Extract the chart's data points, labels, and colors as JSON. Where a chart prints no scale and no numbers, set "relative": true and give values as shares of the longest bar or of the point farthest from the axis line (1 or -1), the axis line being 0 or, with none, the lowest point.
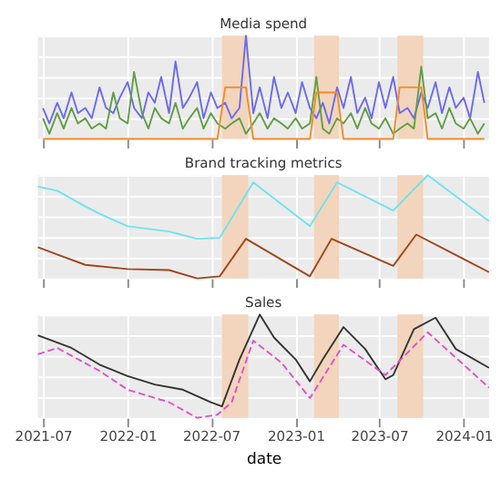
{
  "chart_data": [
    {
      "type": "line",
      "title": "Media spend",
      "relative": true,
      "grid": true,
      "tick_labels": false,
      "xlim": [
        "2021-06-20",
        "2024-02-25"
      ],
      "xticks": [
        "2021-07",
        "2022-01",
        "2022-07",
        "2023-01",
        "2023-07",
        "2024-01"
      ],
      "x": [
        "2021-07-01",
        "2021-07-15",
        "2021-08-01",
        "2021-08-15",
        "2021-09-01",
        "2021-09-15",
        "2021-10-01",
        "2021-10-15",
        "2021-11-01",
        "2021-11-15",
        "2021-12-01",
        "2021-12-15",
        "2022-01-01",
        "2022-01-15",
        "2022-02-01",
        "2022-02-15",
        "2022-03-01",
        "2022-03-15",
        "2022-04-01",
        "2022-04-15",
        "2022-05-01",
        "2022-05-15",
        "2022-06-01",
        "2022-06-15",
        "2022-07-01",
        "2022-07-15",
        "2022-08-01",
        "2022-08-15",
        "2022-09-01",
        "2022-09-15",
        "2022-10-01",
        "2022-10-15",
        "2022-11-01",
        "2022-11-15",
        "2022-12-01",
        "2022-12-15",
        "2023-01-01",
        "2023-01-15",
        "2023-02-01",
        "2023-02-15",
        "2023-03-01",
        "2023-03-15",
        "2023-04-01",
        "2023-04-15",
        "2023-05-01",
        "2023-05-15",
        "2023-06-01",
        "2023-06-15",
        "2023-07-01",
        "2023-07-15",
        "2023-08-01",
        "2023-08-15",
        "2023-09-01",
        "2023-09-15",
        "2023-10-01",
        "2023-10-15",
        "2023-11-01",
        "2023-11-15",
        "2023-12-01",
        "2023-12-15",
        "2024-01-01",
        "2024-01-15",
        "2024-02-01",
        "2024-02-15"
      ],
      "series": [
        {
          "color": "#6a6af0",
          "values": [
            0.3,
            0.15,
            0.35,
            0.2,
            0.45,
            0.25,
            0.3,
            0.2,
            0.5,
            0.3,
            0.25,
            0.4,
            0.55,
            0.3,
            0.2,
            0.45,
            0.35,
            0.6,
            0.25,
            0.75,
            0.3,
            0.4,
            0.55,
            0.2,
            0.45,
            0.3,
            0.35,
            0.2,
            0.3,
            1.0,
            0.25,
            0.5,
            0.2,
            0.6,
            0.3,
            0.45,
            0.25,
            0.55,
            0.3,
            0.2,
            0.35,
            0.15,
            0.5,
            0.3,
            0.6,
            0.25,
            0.4,
            0.2,
            0.55,
            0.3,
            0.6,
            0.25,
            0.3,
            0.2,
            0.45,
            0.3,
            0.55,
            0.25,
            0.5,
            0.3,
            0.4,
            0.2,
            0.65,
            0.35
          ]
        },
        {
          "color": "#5f9e45",
          "values": [
            0.2,
            0.05,
            0.25,
            0.1,
            0.3,
            0.15,
            0.2,
            0.1,
            0.15,
            0.1,
            0.45,
            0.2,
            0.15,
            0.65,
            0.25,
            0.1,
            0.3,
            0.2,
            0.15,
            0.35,
            0.1,
            0.2,
            0.3,
            0.1,
            0.25,
            0.15,
            0.1,
            0.15,
            0.2,
            0.05,
            0.15,
            0.25,
            0.1,
            0.2,
            0.15,
            0.1,
            0.2,
            0.1,
            0.15,
            0.6,
            0.1,
            0.05,
            0.2,
            0.15,
            0.25,
            0.1,
            0.3,
            0.15,
            0.1,
            0.2,
            0.05,
            0.1,
            0.15,
            0.1,
            0.7,
            0.2,
            0.25,
            0.1,
            0.3,
            0.15,
            0.1,
            0.2,
            0.05,
            0.15
          ]
        },
        {
          "color": "#f58a24",
          "values": [
            0,
            0,
            0,
            0,
            0,
            0,
            0,
            0,
            0,
            0,
            0,
            0,
            0,
            0,
            0,
            0,
            0,
            0,
            0,
            0,
            0,
            0,
            0,
            0,
            0,
            0,
            0.5,
            0.5,
            0.5,
            0.5,
            0,
            0,
            0,
            0,
            0,
            0,
            0,
            0,
            0,
            0.45,
            0.45,
            0.45,
            0.45,
            0,
            0,
            0,
            0,
            0,
            0,
            0,
            0,
            0.5,
            0.5,
            0.5,
            0.5,
            0,
            0,
            0,
            0,
            0,
            0,
            0,
            0,
            0
          ]
        }
      ],
      "bands": [
        {
          "axis": "x",
          "from": "2022-07-25",
          "to": "2022-09-20",
          "color": "#f2d5bc"
        },
        {
          "axis": "x",
          "from": "2023-02-10",
          "to": "2023-04-05",
          "color": "#f2d5bc"
        },
        {
          "axis": "x",
          "from": "2023-08-10",
          "to": "2023-10-05",
          "color": "#f2d5bc"
        }
      ]
    },
    {
      "type": "line",
      "title": "Brand tracking metrics",
      "relative": true,
      "grid": true,
      "tick_labels": false,
      "xlim": [
        "2021-06-20",
        "2024-02-25"
      ],
      "xticks": [
        "2021-07",
        "2022-01",
        "2022-07",
        "2023-01",
        "2023-07",
        "2024-01"
      ],
      "x": [
        "2021-06-20",
        "2021-08-01",
        "2021-10-01",
        "2021-11-01",
        "2022-01-01",
        "2022-04-01",
        "2022-06-01",
        "2022-07-20",
        "2022-10-01",
        "2023-02-01",
        "2023-04-01",
        "2023-08-01",
        "2023-10-15",
        "2024-02-25"
      ],
      "series": [
        {
          "color": "#a0451c",
          "x": [
            "2021-06-20",
            "2021-08-01",
            "2021-10-01",
            "2022-01-01",
            "2022-04-01",
            "2022-06-01",
            "2022-07-20",
            "2022-09-15",
            "2023-02-01",
            "2023-03-20",
            "2023-08-01",
            "2023-09-20",
            "2024-02-25"
          ],
          "values": [
            0.31,
            0.24,
            0.14,
            0.1,
            0.09,
            0.01,
            0.03,
            0.39,
            0.03,
            0.39,
            0.13,
            0.43,
            0.07
          ]
        },
        {
          "color": "#6fe3ef",
          "values": [
            0.89,
            0.85,
            0.7,
            0.63,
            0.51,
            0.46,
            0.39,
            0.4,
            0.93,
            0.51,
            0.93,
            0.66,
            1.0,
            0.56
          ]
        }
      ],
      "bands": [
        {
          "axis": "x",
          "from": "2022-07-25",
          "to": "2022-09-20",
          "color": "#f2d5bc"
        },
        {
          "axis": "x",
          "from": "2023-02-10",
          "to": "2023-04-05",
          "color": "#f2d5bc"
        },
        {
          "axis": "x",
          "from": "2023-08-10",
          "to": "2023-10-05",
          "color": "#f2d5bc"
        }
      ]
    },
    {
      "type": "line",
      "title": "Sales",
      "xlabel": "date",
      "relative": true,
      "grid": true,
      "tick_labels": "x",
      "xlim": [
        "2021-06-20",
        "2024-02-25"
      ],
      "xticks": [
        "2021-07",
        "2022-01",
        "2022-07",
        "2023-01",
        "2023-07",
        "2024-01"
      ],
      "series": [
        {
          "color": "#333333",
          "line_style": "solid",
          "x": [
            "2021-06-20",
            "2021-09-01",
            "2021-11-01",
            "2022-01-01",
            "2022-03-01",
            "2022-05-01",
            "2022-07-01",
            "2022-07-25",
            "2022-09-01",
            "2022-10-15",
            "2022-11-15",
            "2023-01-01",
            "2023-02-01",
            "2023-03-01",
            "2023-04-15",
            "2023-06-01",
            "2023-07-15",
            "2023-08-01",
            "2023-09-15",
            "2023-11-01",
            "2023-12-15",
            "2024-02-25"
          ],
          "values": [
            0.8,
            0.68,
            0.52,
            0.41,
            0.33,
            0.28,
            0.16,
            0.12,
            0.57,
            1.0,
            0.78,
            0.57,
            0.36,
            0.57,
            0.88,
            0.67,
            0.38,
            0.42,
            0.86,
            0.97,
            0.67,
            0.49
          ]
        },
        {
          "color": "#e050c8",
          "line_style": "dashed",
          "x": [
            "2021-06-20",
            "2021-08-01",
            "2021-11-01",
            "2022-01-01",
            "2022-04-01",
            "2022-06-01",
            "2022-07-15",
            "2022-08-15",
            "2022-10-01",
            "2022-12-01",
            "2023-02-01",
            "2023-04-15",
            "2023-07-15",
            "2023-10-15",
            "2024-02-25"
          ],
          "values": [
            0.62,
            0.68,
            0.46,
            0.28,
            0.16,
            0.01,
            0.04,
            0.16,
            0.75,
            0.54,
            0.2,
            0.71,
            0.42,
            0.83,
            0.3
          ]
        }
      ],
      "bands": [
        {
          "axis": "x",
          "from": "2022-07-25",
          "to": "2022-09-20",
          "color": "#f2d5bc"
        },
        {
          "axis": "x",
          "from": "2023-02-10",
          "to": "2023-04-05",
          "color": "#f2d5bc"
        },
        {
          "axis": "x",
          "from": "2023-08-10",
          "to": "2023-10-05",
          "color": "#f2d5bc"
        }
      ]
    }
  ]
}
